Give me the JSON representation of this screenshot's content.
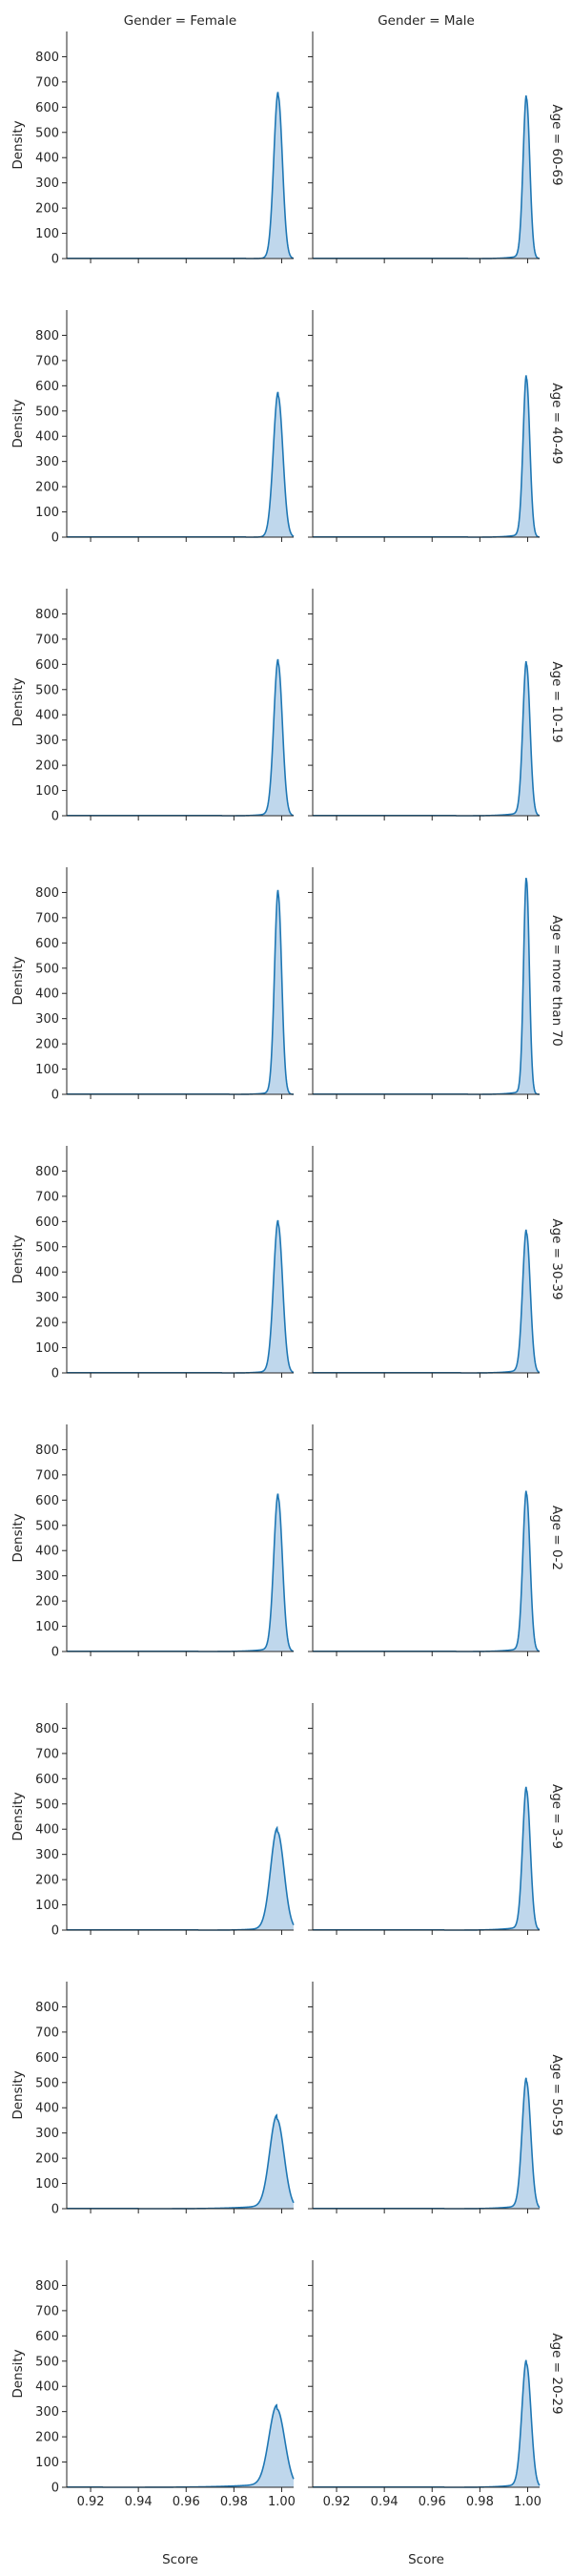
{
  "chart_data": {
    "type": "area",
    "kind": "kde-facet-grid",
    "col_titles": [
      "Gender = Female",
      "Gender = Male"
    ],
    "row_titles": [
      "Age = 60-69",
      "Age = 40-49",
      "Age = 10-19",
      "Age = more than 70",
      "Age = 30-39",
      "Age = 0-2",
      "Age = 3-9",
      "Age = 50-59",
      "Age = 20-29"
    ],
    "xlabel": "Score",
    "ylabel": "Density",
    "xlim": [
      0.91,
      1.005
    ],
    "ylim": [
      0,
      900
    ],
    "xticks": [
      0.92,
      0.94,
      0.96,
      0.98,
      1.0
    ],
    "xtick_labels": [
      "0.92",
      "0.94",
      "0.96",
      "0.98",
      "1.00"
    ],
    "yticks": [
      0,
      100,
      200,
      300,
      400,
      500,
      600,
      700,
      800
    ],
    "line_color": "#1f77b4",
    "fill_color": "#a9c9e6",
    "grid": false,
    "panels": [
      [
        {
          "peak_x": 0.9985,
          "peak_y": 645,
          "width": 0.0018,
          "tail_start": 0.985
        },
        {
          "peak_x": 0.9995,
          "peak_y": 635,
          "width": 0.0014,
          "tail_start": 0.975
        }
      ],
      [
        {
          "peak_x": 0.9985,
          "peak_y": 560,
          "width": 0.002,
          "tail_start": 0.985
        },
        {
          "peak_x": 0.9995,
          "peak_y": 630,
          "width": 0.0014,
          "tail_start": 0.975
        }
      ],
      [
        {
          "peak_x": 0.9985,
          "peak_y": 605,
          "width": 0.0018,
          "tail_start": 0.975
        },
        {
          "peak_x": 0.9995,
          "peak_y": 600,
          "width": 0.0015,
          "tail_start": 0.97
        }
      ],
      [
        {
          "peak_x": 0.9985,
          "peak_y": 795,
          "width": 0.0015,
          "tail_start": 0.978
        },
        {
          "peak_x": 0.9995,
          "peak_y": 850,
          "width": 0.0012,
          "tail_start": 0.975
        }
      ],
      [
        {
          "peak_x": 0.9985,
          "peak_y": 590,
          "width": 0.0019,
          "tail_start": 0.975
        },
        {
          "peak_x": 0.9995,
          "peak_y": 555,
          "width": 0.0016,
          "tail_start": 0.972
        }
      ],
      [
        {
          "peak_x": 0.9985,
          "peak_y": 610,
          "width": 0.0018,
          "tail_start": 0.965
        },
        {
          "peak_x": 0.9995,
          "peak_y": 625,
          "width": 0.0015,
          "tail_start": 0.97
        }
      ],
      [
        {
          "peak_x": 0.9982,
          "peak_y": 390,
          "width": 0.0028,
          "tail_start": 0.965
        },
        {
          "peak_x": 0.9995,
          "peak_y": 555,
          "width": 0.0016,
          "tail_start": 0.965
        }
      ],
      [
        {
          "peak_x": 0.998,
          "peak_y": 355,
          "width": 0.003,
          "tail_start": 0.94
        },
        {
          "peak_x": 0.9995,
          "peak_y": 505,
          "width": 0.0018,
          "tail_start": 0.965
        }
      ],
      [
        {
          "peak_x": 0.998,
          "peak_y": 310,
          "width": 0.0033,
          "tail_start": 0.925
        },
        {
          "peak_x": 0.9995,
          "peak_y": 490,
          "width": 0.0019,
          "tail_start": 0.965
        }
      ]
    ]
  }
}
